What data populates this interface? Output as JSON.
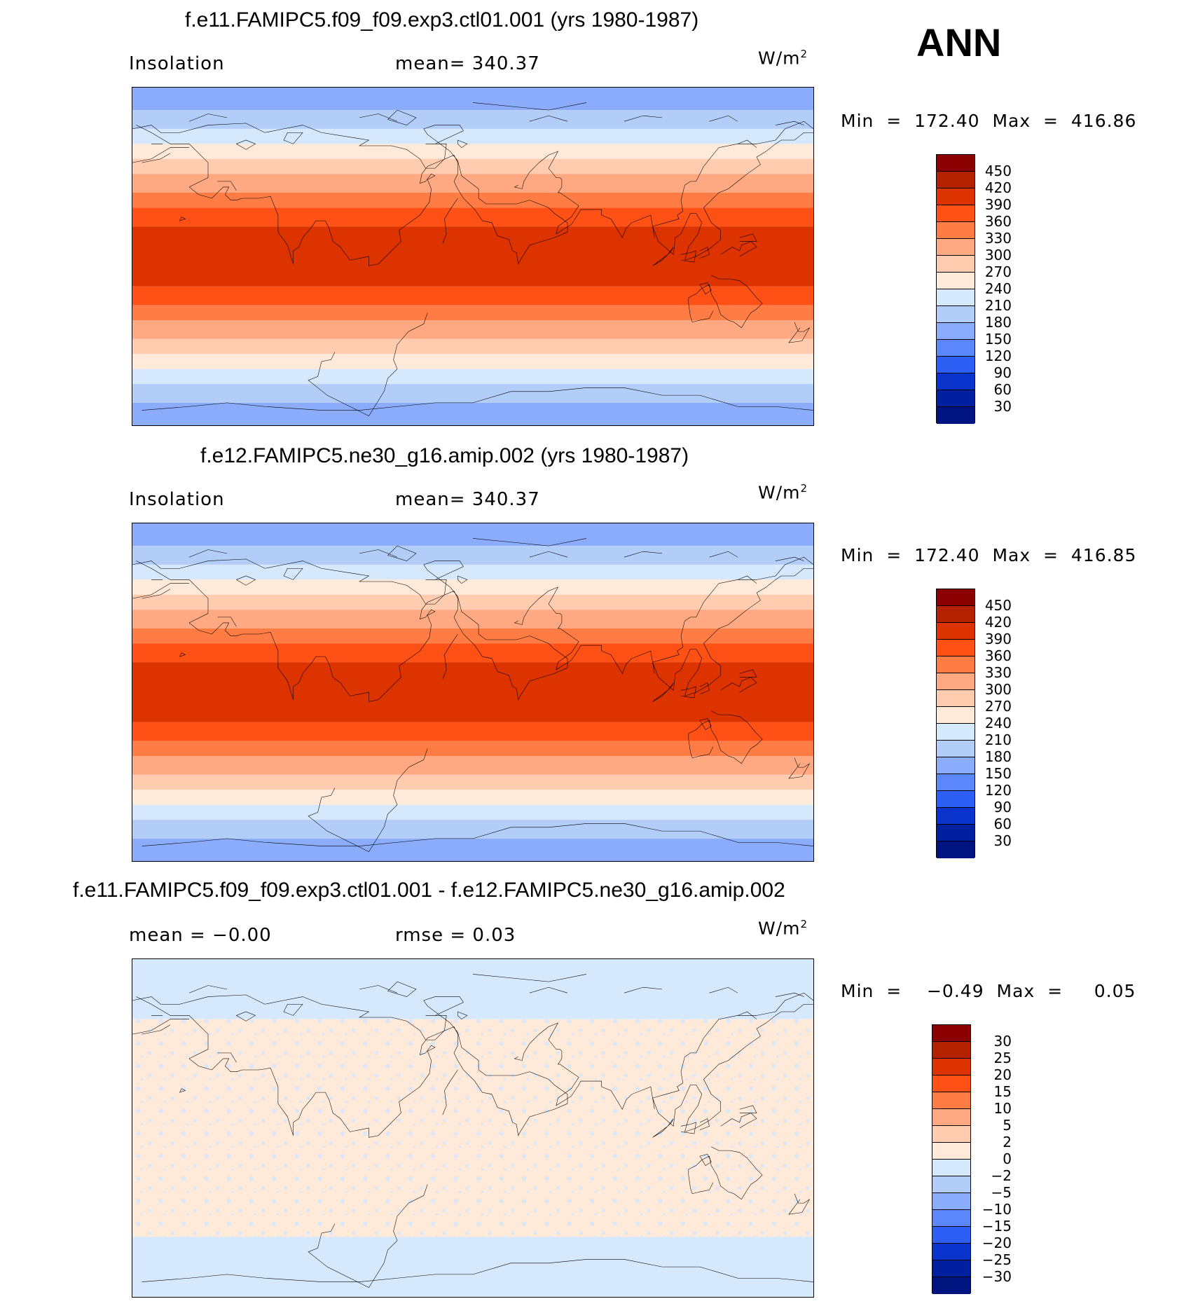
{
  "season": "ANN",
  "panels": [
    {
      "title": "f.e11.FAMIPC5.f09_f09.exp3.ctl01.001 (yrs 1980-1987)",
      "left_label": "Insolation",
      "center_label": "mean=  340.37",
      "units": "W/m",
      "units_sup": "2",
      "minmax": "Min  =  172.40  Max  =  416.86",
      "colorbar": {
        "labels": [
          "450",
          "420",
          "390",
          "360",
          "330",
          "300",
          "270",
          "240",
          "210",
          "180",
          "150",
          "120",
          "90",
          "60",
          "30"
        ],
        "colors": [
          "#8b0000",
          "#b32100",
          "#dd3300",
          "#ff5015",
          "#ff7d45",
          "#ffa982",
          "#ffccb0",
          "#ffe9d8",
          "#d6e8fb",
          "#b3cdf9",
          "#8aacfa",
          "#5b87fa",
          "#2d5ff4",
          "#0a33cc",
          "#0020a0",
          "#001480"
        ]
      },
      "bands": [
        {
          "lat": 90,
          "color": "#8aacfa"
        },
        {
          "lat": 78,
          "color": "#b3cdf9"
        },
        {
          "lat": 68,
          "color": "#d6e8fb"
        },
        {
          "lat": 60,
          "color": "#ffe9d8"
        },
        {
          "lat": 52,
          "color": "#ffccb0"
        },
        {
          "lat": 44,
          "color": "#ffa982"
        },
        {
          "lat": 34,
          "color": "#ff7d45"
        },
        {
          "lat": 26,
          "color": "#ff5015"
        },
        {
          "lat": 16,
          "color": "#dd3300"
        },
        {
          "lat": -16,
          "color": "#ff5015"
        },
        {
          "lat": -26,
          "color": "#ff7d45"
        },
        {
          "lat": -34,
          "color": "#ffa982"
        },
        {
          "lat": -44,
          "color": "#ffccb0"
        },
        {
          "lat": -52,
          "color": "#ffe9d8"
        },
        {
          "lat": -60,
          "color": "#d6e8fb"
        },
        {
          "lat": -68,
          "color": "#b3cdf9"
        },
        {
          "lat": -78,
          "color": "#8aacfa"
        }
      ]
    },
    {
      "title": "f.e12.FAMIPC5.ne30_g16.amip.002 (yrs 1980-1987)",
      "left_label": "Insolation",
      "center_label": "mean=  340.37",
      "units": "W/m",
      "units_sup": "2",
      "minmax": "Min  =  172.40  Max  =  416.85",
      "colorbar": {
        "labels": [
          "450",
          "420",
          "390",
          "360",
          "330",
          "300",
          "270",
          "240",
          "210",
          "180",
          "150",
          "120",
          "90",
          "60",
          "30"
        ],
        "colors": [
          "#8b0000",
          "#b32100",
          "#dd3300",
          "#ff5015",
          "#ff7d45",
          "#ffa982",
          "#ffccb0",
          "#ffe9d8",
          "#d6e8fb",
          "#b3cdf9",
          "#8aacfa",
          "#5b87fa",
          "#2d5ff4",
          "#0a33cc",
          "#0020a0",
          "#001480"
        ]
      },
      "bands": [
        {
          "lat": 90,
          "color": "#8aacfa"
        },
        {
          "lat": 78,
          "color": "#b3cdf9"
        },
        {
          "lat": 68,
          "color": "#d6e8fb"
        },
        {
          "lat": 60,
          "color": "#ffe9d8"
        },
        {
          "lat": 52,
          "color": "#ffccb0"
        },
        {
          "lat": 44,
          "color": "#ffa982"
        },
        {
          "lat": 34,
          "color": "#ff7d45"
        },
        {
          "lat": 26,
          "color": "#ff5015"
        },
        {
          "lat": 16,
          "color": "#dd3300"
        },
        {
          "lat": -16,
          "color": "#ff5015"
        },
        {
          "lat": -26,
          "color": "#ff7d45"
        },
        {
          "lat": -34,
          "color": "#ffa982"
        },
        {
          "lat": -44,
          "color": "#ffccb0"
        },
        {
          "lat": -52,
          "color": "#ffe9d8"
        },
        {
          "lat": -60,
          "color": "#d6e8fb"
        },
        {
          "lat": -68,
          "color": "#b3cdf9"
        },
        {
          "lat": -78,
          "color": "#8aacfa"
        }
      ]
    },
    {
      "title": "f.e11.FAMIPC5.f09_f09.exp3.ctl01.001 - f.e12.FAMIPC5.ne30_g16.amip.002",
      "left_label": "mean  =   −0.00",
      "center_label": "rmse  =     0.03",
      "units": "W/m",
      "units_sup": "2",
      "minmax": "Min  =    −0.49  Max  =     0.05",
      "colorbar": {
        "labels": [
          "30",
          "25",
          "20",
          "15",
          "10",
          "5",
          "2",
          "0",
          "−2",
          "−5",
          "−10",
          "−15",
          "−20",
          "−25",
          "−30"
        ],
        "colors": [
          "#8b0000",
          "#b32100",
          "#dd3300",
          "#ff5015",
          "#ff7d45",
          "#ffa982",
          "#ffccb0",
          "#ffe9d8",
          "#d6e8fb",
          "#b3cdf9",
          "#8aacfa",
          "#5b87fa",
          "#2d5ff4",
          "#0a33cc",
          "#0020a0",
          "#001480"
        ]
      },
      "bands": [
        {
          "lat": 90,
          "color": "#d6e8fb"
        },
        {
          "lat": 58,
          "color": "#ffe9d8"
        },
        {
          "lat": -58,
          "color": "#d6e8fb"
        }
      ]
    }
  ]
}
